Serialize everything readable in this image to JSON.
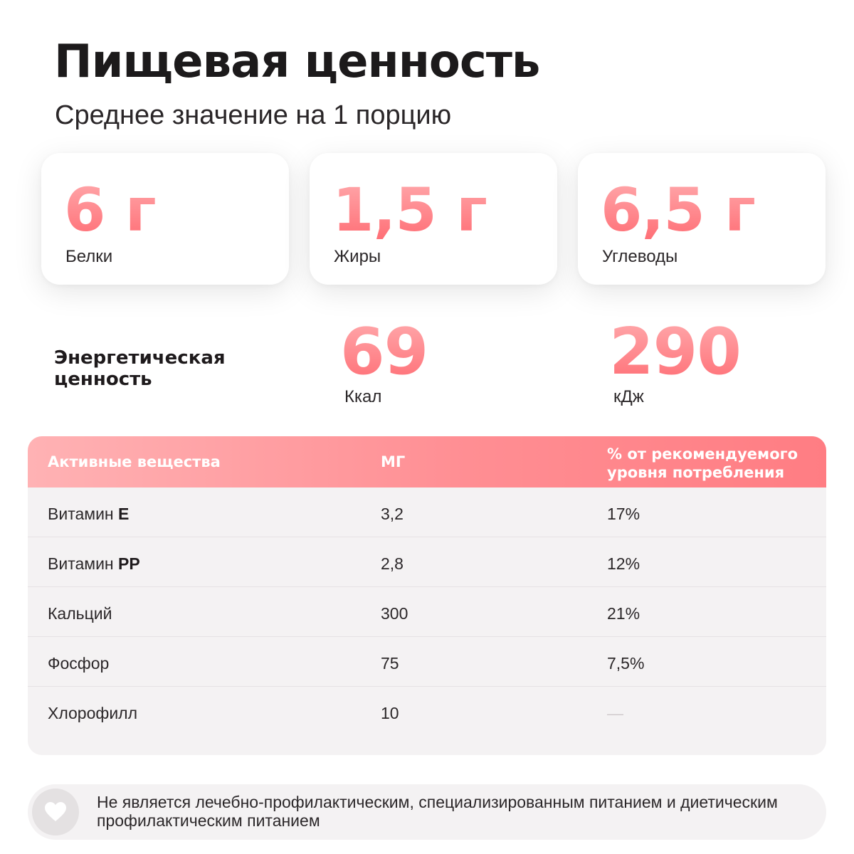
{
  "header": {
    "title": "Пищевая ценность",
    "subtitle": "Среднее значение на 1 порцию"
  },
  "macros": [
    {
      "value": "6 г",
      "label": "Белки"
    },
    {
      "value": "1,5 г",
      "label": "Жиры"
    },
    {
      "value": "6,5 г",
      "label": "Углеводы"
    }
  ],
  "energy": {
    "label": "Энергетическая ценность",
    "kcal_value": "69",
    "kcal_unit": "Ккал",
    "kj_value": "290",
    "kj_unit": "кДж"
  },
  "table": {
    "headers": [
      "Активные вещества",
      "МГ",
      "% от рекомендуемого уровня потребления"
    ],
    "rows": [
      {
        "name_prefix": "Витамин",
        "name_bold": "E",
        "mg": "3,2",
        "pct": "17%"
      },
      {
        "name_prefix": "Витамин",
        "name_bold": "PP",
        "mg": "2,8",
        "pct": "12%"
      },
      {
        "name_prefix": "Кальций",
        "name_bold": "",
        "mg": "300",
        "pct": "21%"
      },
      {
        "name_prefix": "Фосфор",
        "name_bold": "",
        "mg": "75",
        "pct": "7,5%"
      },
      {
        "name_prefix": "Хлорофилл",
        "name_bold": "",
        "mg": "10",
        "pct": "—"
      }
    ]
  },
  "note": {
    "icon": "heart-icon",
    "text": "Не является лечебно-профилактическим, специализированным питанием и диетическим профилактическим питанием"
  },
  "colors": {
    "accent_light": "#ffa7aa",
    "accent_dark": "#ff6f76",
    "text": "#1e1a1c",
    "panel_bg": "#f4f2f3"
  }
}
